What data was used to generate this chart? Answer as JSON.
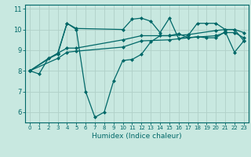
{
  "title": "",
  "xlabel": "Humidex (Indice chaleur)",
  "ylabel": "",
  "bg_color": "#c8e8e0",
  "grid_color": "#b0d0c8",
  "line_color": "#006868",
  "xlim": [
    -0.5,
    23.5
  ],
  "ylim": [
    5.5,
    11.2
  ],
  "xticks": [
    0,
    1,
    2,
    3,
    4,
    5,
    6,
    7,
    8,
    9,
    10,
    11,
    12,
    13,
    14,
    15,
    16,
    17,
    18,
    19,
    20,
    21,
    22,
    23
  ],
  "yticks": [
    6,
    7,
    8,
    9,
    10,
    11
  ],
  "lines": [
    {
      "x": [
        0,
        1,
        2,
        3,
        4,
        5,
        6,
        7,
        8,
        9,
        10,
        11,
        12,
        13,
        14,
        15,
        16,
        17,
        18,
        19,
        20,
        21,
        22,
        23
      ],
      "y": [
        8.0,
        7.85,
        8.6,
        8.8,
        10.3,
        10.0,
        7.0,
        5.75,
        6.0,
        7.5,
        8.5,
        8.55,
        8.8,
        9.4,
        9.7,
        9.7,
        9.8,
        9.6,
        9.65,
        9.6,
        9.6,
        9.9,
        8.9,
        9.45
      ]
    },
    {
      "x": [
        0,
        2,
        3,
        4,
        5,
        10,
        11,
        12,
        13,
        14,
        15,
        16,
        17,
        18,
        19,
        20,
        21,
        22,
        23
      ],
      "y": [
        8.0,
        8.6,
        8.85,
        10.3,
        10.05,
        10.0,
        10.5,
        10.55,
        10.4,
        9.85,
        10.55,
        9.55,
        9.7,
        10.3,
        10.3,
        10.3,
        10.0,
        10.0,
        9.45
      ]
    },
    {
      "x": [
        0,
        3,
        4,
        5,
        10,
        12,
        15,
        17,
        20,
        21,
        22,
        23
      ],
      "y": [
        8.0,
        8.6,
        8.9,
        8.95,
        9.15,
        9.45,
        9.5,
        9.6,
        9.7,
        9.85,
        9.85,
        9.6
      ]
    },
    {
      "x": [
        0,
        3,
        4,
        5,
        10,
        12,
        15,
        17,
        20,
        21,
        22,
        23
      ],
      "y": [
        8.0,
        8.85,
        9.1,
        9.1,
        9.5,
        9.7,
        9.7,
        9.75,
        9.95,
        10.0,
        10.0,
        9.85
      ]
    }
  ]
}
